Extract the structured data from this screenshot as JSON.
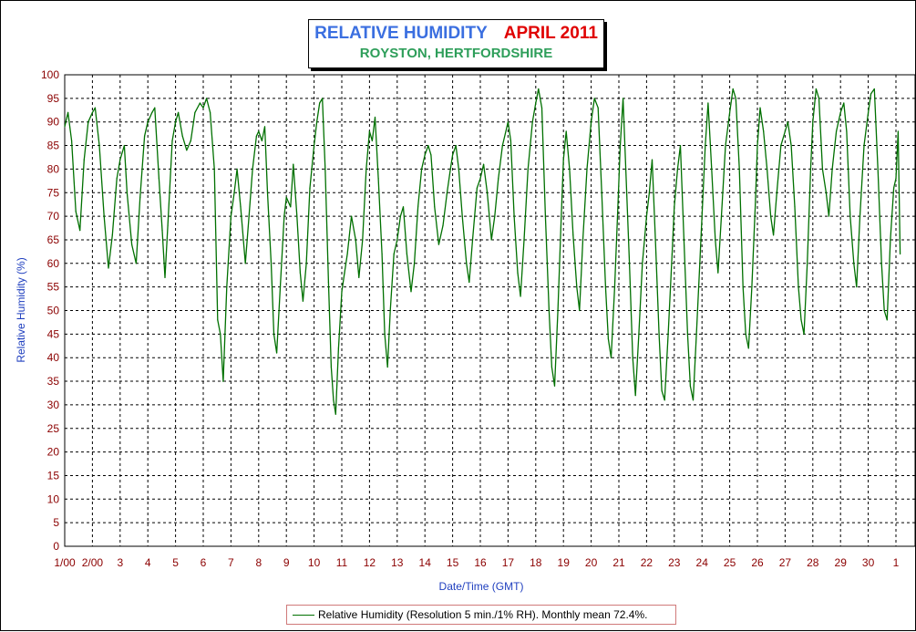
{
  "chart_data": {
    "type": "line",
    "title": "RELATIVE HUMIDITY",
    "title_date": "APRIL 2011",
    "subtitle": "ROYSTON, HERTFORDSHIRE",
    "xlabel": "Date/Time (GMT)",
    "ylabel": "Relative Humidity (%)",
    "ylim": [
      0,
      100
    ],
    "y_ticks": [
      "0",
      "5",
      "10",
      "15",
      "20",
      "25",
      "30",
      "35",
      "40",
      "45",
      "50",
      "55",
      "60",
      "65",
      "70",
      "75",
      "80",
      "85",
      "90",
      "95",
      "100"
    ],
    "x_ticks": [
      "1/00",
      "2/00",
      "3",
      "4",
      "5",
      "6",
      "7",
      "8",
      "9",
      "10",
      "11",
      "12",
      "13",
      "14",
      "15",
      "16",
      "17",
      "18",
      "19",
      "20",
      "21",
      "22",
      "23",
      "24",
      "25",
      "26",
      "27",
      "28",
      "29",
      "30",
      "1"
    ],
    "xlim_days": [
      1,
      31.15
    ],
    "grid": true,
    "series": [
      {
        "name": "Relative Humidity (Resolution 5 min./1% RH). Monthly mean 72.4%.",
        "color": "#007000",
        "points": [
          [
            1.0,
            89
          ],
          [
            1.12,
            92
          ],
          [
            1.25,
            86
          ],
          [
            1.4,
            71
          ],
          [
            1.55,
            67
          ],
          [
            1.7,
            82
          ],
          [
            1.85,
            90
          ],
          [
            2.0,
            92
          ],
          [
            2.1,
            93
          ],
          [
            2.25,
            85
          ],
          [
            2.42,
            70
          ],
          [
            2.58,
            59
          ],
          [
            2.72,
            66
          ],
          [
            2.88,
            78
          ],
          [
            3.0,
            82
          ],
          [
            3.15,
            85
          ],
          [
            3.25,
            75
          ],
          [
            3.42,
            64
          ],
          [
            3.58,
            60
          ],
          [
            3.72,
            74
          ],
          [
            3.88,
            87
          ],
          [
            4.0,
            90
          ],
          [
            4.15,
            92
          ],
          [
            4.25,
            93
          ],
          [
            4.4,
            78
          ],
          [
            4.52,
            67
          ],
          [
            4.62,
            57
          ],
          [
            4.72,
            68
          ],
          [
            4.88,
            86
          ],
          [
            5.0,
            90
          ],
          [
            5.1,
            92
          ],
          [
            5.25,
            87
          ],
          [
            5.4,
            84
          ],
          [
            5.55,
            86
          ],
          [
            5.7,
            92
          ],
          [
            5.88,
            94
          ],
          [
            6.0,
            93
          ],
          [
            6.12,
            95
          ],
          [
            6.25,
            92
          ],
          [
            6.4,
            80
          ],
          [
            6.52,
            48
          ],
          [
            6.62,
            45
          ],
          [
            6.72,
            35
          ],
          [
            6.85,
            55
          ],
          [
            7.0,
            70
          ],
          [
            7.12,
            75
          ],
          [
            7.22,
            80
          ],
          [
            7.35,
            72
          ],
          [
            7.52,
            60
          ],
          [
            7.65,
            70
          ],
          [
            7.78,
            80
          ],
          [
            7.92,
            87
          ],
          [
            8.0,
            88
          ],
          [
            8.12,
            86
          ],
          [
            8.22,
            89
          ],
          [
            8.32,
            75
          ],
          [
            8.45,
            60
          ],
          [
            8.55,
            45
          ],
          [
            8.65,
            41
          ],
          [
            8.78,
            55
          ],
          [
            8.92,
            70
          ],
          [
            9.0,
            74
          ],
          [
            9.15,
            72
          ],
          [
            9.25,
            81
          ],
          [
            9.38,
            70
          ],
          [
            9.5,
            58
          ],
          [
            9.6,
            52
          ],
          [
            9.72,
            60
          ],
          [
            9.85,
            76
          ],
          [
            10.0,
            85
          ],
          [
            10.1,
            90
          ],
          [
            10.2,
            94
          ],
          [
            10.3,
            95
          ],
          [
            10.4,
            80
          ],
          [
            10.52,
            56
          ],
          [
            10.62,
            38
          ],
          [
            10.7,
            31
          ],
          [
            10.78,
            28
          ],
          [
            10.88,
            42
          ],
          [
            11.0,
            54
          ],
          [
            11.1,
            58
          ],
          [
            11.2,
            62
          ],
          [
            11.35,
            70
          ],
          [
            11.5,
            65
          ],
          [
            11.62,
            57
          ],
          [
            11.75,
            65
          ],
          [
            11.88,
            80
          ],
          [
            12.0,
            88
          ],
          [
            12.1,
            86
          ],
          [
            12.2,
            91
          ],
          [
            12.32,
            78
          ],
          [
            12.45,
            62
          ],
          [
            12.55,
            45
          ],
          [
            12.65,
            38
          ],
          [
            12.75,
            50
          ],
          [
            12.88,
            62
          ],
          [
            13.0,
            65
          ],
          [
            13.12,
            70
          ],
          [
            13.22,
            72
          ],
          [
            13.35,
            62
          ],
          [
            13.5,
            54
          ],
          [
            13.62,
            60
          ],
          [
            13.75,
            72
          ],
          [
            13.88,
            80
          ],
          [
            14.0,
            83
          ],
          [
            14.12,
            85
          ],
          [
            14.22,
            83
          ],
          [
            14.35,
            72
          ],
          [
            14.5,
            64
          ],
          [
            14.65,
            68
          ],
          [
            14.8,
            75
          ],
          [
            14.92,
            80
          ],
          [
            15.0,
            83
          ],
          [
            15.12,
            85
          ],
          [
            15.22,
            80
          ],
          [
            15.35,
            70
          ],
          [
            15.5,
            60
          ],
          [
            15.6,
            56
          ],
          [
            15.72,
            65
          ],
          [
            15.88,
            76
          ],
          [
            16.0,
            78
          ],
          [
            16.12,
            81
          ],
          [
            16.25,
            75
          ],
          [
            16.4,
            65
          ],
          [
            16.52,
            70
          ],
          [
            16.65,
            78
          ],
          [
            16.8,
            85
          ],
          [
            16.92,
            88
          ],
          [
            17.0,
            90
          ],
          [
            17.1,
            86
          ],
          [
            17.22,
            70
          ],
          [
            17.35,
            58
          ],
          [
            17.45,
            53
          ],
          [
            17.58,
            65
          ],
          [
            17.72,
            80
          ],
          [
            17.88,
            90
          ],
          [
            18.0,
            94
          ],
          [
            18.1,
            97
          ],
          [
            18.22,
            93
          ],
          [
            18.35,
            70
          ],
          [
            18.48,
            50
          ],
          [
            18.58,
            38
          ],
          [
            18.68,
            34
          ],
          [
            18.8,
            50
          ],
          [
            18.92,
            70
          ],
          [
            19.0,
            82
          ],
          [
            19.1,
            88
          ],
          [
            19.22,
            80
          ],
          [
            19.35,
            66
          ],
          [
            19.48,
            55
          ],
          [
            19.58,
            50
          ],
          [
            19.7,
            65
          ],
          [
            19.85,
            80
          ],
          [
            20.0,
            90
          ],
          [
            20.12,
            95
          ],
          [
            20.25,
            93
          ],
          [
            20.38,
            75
          ],
          [
            20.52,
            55
          ],
          [
            20.62,
            44
          ],
          [
            20.72,
            40
          ],
          [
            20.85,
            55
          ],
          [
            20.95,
            70
          ],
          [
            21.05,
            85
          ],
          [
            21.15,
            95
          ],
          [
            21.25,
            80
          ],
          [
            21.38,
            60
          ],
          [
            21.5,
            40
          ],
          [
            21.6,
            32
          ],
          [
            21.72,
            45
          ],
          [
            21.85,
            60
          ],
          [
            22.0,
            70
          ],
          [
            22.1,
            75
          ],
          [
            22.2,
            82
          ],
          [
            22.32,
            65
          ],
          [
            22.45,
            45
          ],
          [
            22.55,
            33
          ],
          [
            22.65,
            31
          ],
          [
            22.78,
            45
          ],
          [
            22.92,
            62
          ],
          [
            23.0,
            72
          ],
          [
            23.12,
            80
          ],
          [
            23.22,
            85
          ],
          [
            23.35,
            65
          ],
          [
            23.48,
            45
          ],
          [
            23.58,
            34
          ],
          [
            23.68,
            31
          ],
          [
            23.8,
            45
          ],
          [
            23.92,
            60
          ],
          [
            24.0,
            70
          ],
          [
            24.12,
            85
          ],
          [
            24.22,
            94
          ],
          [
            24.35,
            80
          ],
          [
            24.48,
            65
          ],
          [
            24.58,
            58
          ],
          [
            24.7,
            70
          ],
          [
            24.85,
            85
          ],
          [
            25.0,
            92
          ],
          [
            25.12,
            97
          ],
          [
            25.22,
            95
          ],
          [
            25.35,
            80
          ],
          [
            25.48,
            55
          ],
          [
            25.58,
            45
          ],
          [
            25.68,
            42
          ],
          [
            25.8,
            55
          ],
          [
            25.92,
            72
          ],
          [
            26.0,
            85
          ],
          [
            26.1,
            93
          ],
          [
            26.22,
            88
          ],
          [
            26.35,
            80
          ],
          [
            26.48,
            70
          ],
          [
            26.58,
            66
          ],
          [
            26.7,
            75
          ],
          [
            26.85,
            85
          ],
          [
            27.0,
            88
          ],
          [
            27.1,
            90
          ],
          [
            27.22,
            85
          ],
          [
            27.35,
            72
          ],
          [
            27.48,
            55
          ],
          [
            27.58,
            48
          ],
          [
            27.68,
            45
          ],
          [
            27.8,
            60
          ],
          [
            27.92,
            80
          ],
          [
            28.0,
            90
          ],
          [
            28.12,
            97
          ],
          [
            28.22,
            95
          ],
          [
            28.35,
            80
          ],
          [
            28.48,
            75
          ],
          [
            28.58,
            70
          ],
          [
            28.7,
            80
          ],
          [
            28.85,
            88
          ],
          [
            29.0,
            92
          ],
          [
            29.12,
            94
          ],
          [
            29.22,
            88
          ],
          [
            29.35,
            70
          ],
          [
            29.48,
            60
          ],
          [
            29.58,
            55
          ],
          [
            29.7,
            70
          ],
          [
            29.85,
            85
          ],
          [
            30.0,
            92
          ],
          [
            30.1,
            96
          ],
          [
            30.22,
            97
          ],
          [
            30.35,
            80
          ],
          [
            30.48,
            60
          ],
          [
            30.58,
            50
          ],
          [
            30.68,
            48
          ],
          [
            30.8,
            65
          ],
          [
            30.92,
            76
          ],
          [
            31.0,
            78
          ],
          [
            31.08,
            88
          ],
          [
            31.15,
            62
          ]
        ]
      }
    ]
  }
}
